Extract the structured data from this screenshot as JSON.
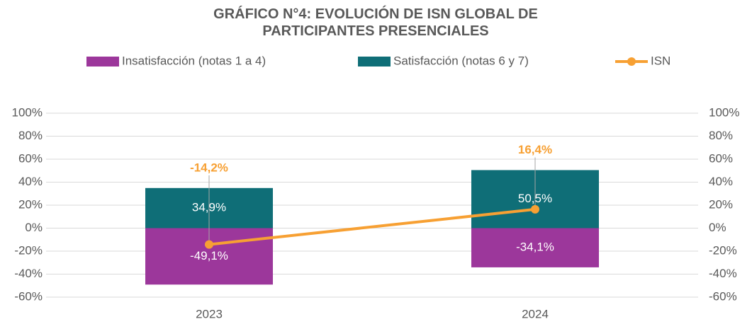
{
  "chart_data": {
    "type": "bar",
    "title": "GRÁFICO N°4: EVOLUCIÓN DE ISN GLOBAL DE PARTICIPANTES PRESENCIALES",
    "categories": [
      "2023",
      "2024"
    ],
    "stacked": true,
    "series": [
      {
        "name": "Insatisfacción (notas 1 a 4)",
        "color": "#9c379b",
        "values": [
          -49.1,
          -34.1
        ],
        "value_labels": [
          "-49,1%",
          "-34,1%"
        ]
      },
      {
        "name": "Satisfacción (notas 6 y 7)",
        "color": "#0f6e77",
        "values": [
          34.9,
          50.5
        ],
        "value_labels": [
          "34,9%",
          "50,5%"
        ]
      },
      {
        "name": "ISN",
        "type": "line",
        "axis": "y2",
        "color": "#f7a033",
        "values": [
          -14.2,
          16.4
        ],
        "value_labels": [
          "-14,2%",
          "16,4%"
        ]
      }
    ],
    "ylim": [
      -60,
      100
    ],
    "yticks": [
      {
        "value": 100,
        "label": "100%"
      },
      {
        "value": 80,
        "label": "80%"
      },
      {
        "value": 60,
        "label": "60%"
      },
      {
        "value": 40,
        "label": "40%"
      },
      {
        "value": 20,
        "label": "20%"
      },
      {
        "value": 0,
        "label": "0%"
      },
      {
        "value": -20,
        "label": "-20%"
      },
      {
        "value": -40,
        "label": "-40%"
      },
      {
        "value": -60,
        "label": "-60%"
      }
    ],
    "y2lim": [
      -60,
      100
    ],
    "y2ticks": [
      {
        "value": 100,
        "label": "100%"
      },
      {
        "value": 80,
        "label": "80%"
      },
      {
        "value": 60,
        "label": "60%"
      },
      {
        "value": 40,
        "label": "40%"
      },
      {
        "value": 20,
        "label": "20%"
      },
      {
        "value": 0,
        "label": "0%"
      },
      {
        "value": -20,
        "label": "-20%"
      },
      {
        "value": -40,
        "label": "-40%"
      },
      {
        "value": -60,
        "label": "-60%"
      }
    ],
    "grid": true,
    "legend": "top"
  }
}
